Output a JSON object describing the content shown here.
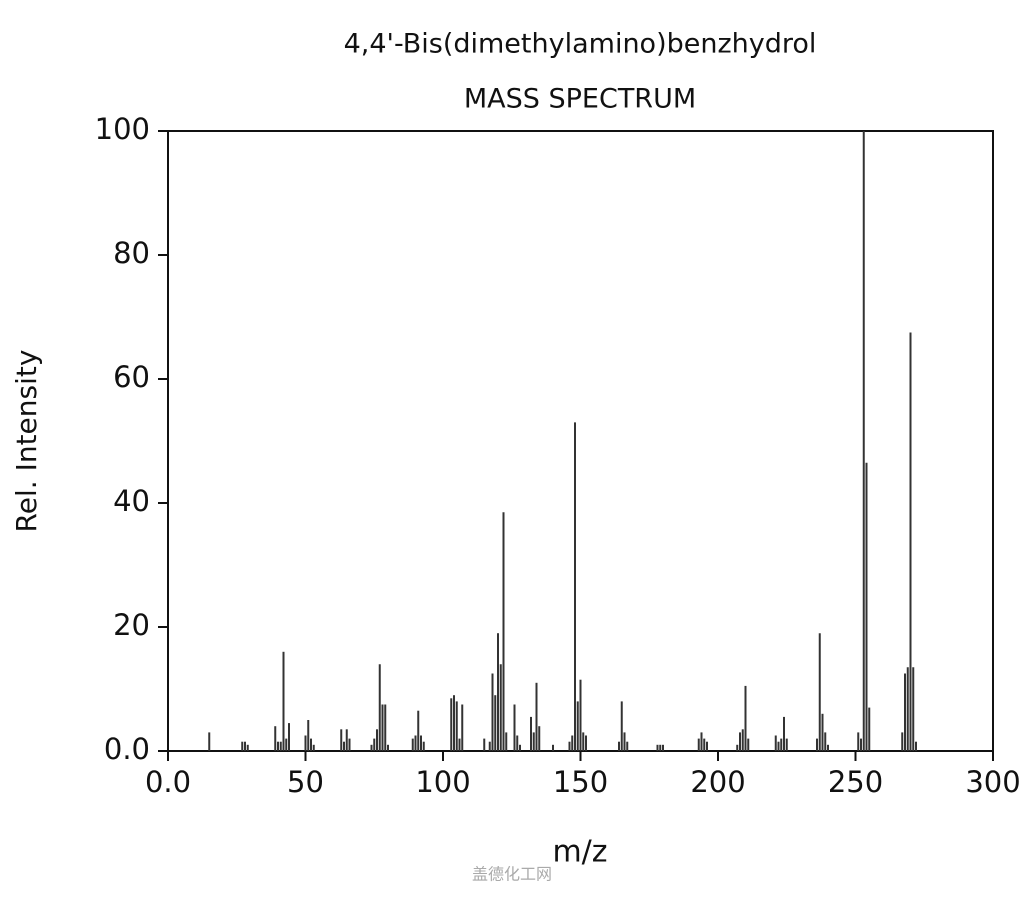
{
  "chart_data": {
    "type": "bar",
    "title": "4,4'-Bis(dimethylamino)benzhydrol",
    "subtitle": "MASS SPECTRUM",
    "x_label": "m/z",
    "y_label": "Rel. Intensity",
    "watermark": "盖德化工网",
    "color": "#333333",
    "x": [
      15,
      27,
      28,
      29,
      39,
      40,
      41,
      42,
      43,
      44,
      50,
      51,
      52,
      53,
      63,
      64,
      65,
      66,
      74,
      75,
      76,
      77,
      78,
      79,
      80,
      89,
      90,
      91,
      92,
      93,
      103,
      104,
      105,
      106,
      107,
      115,
      117,
      118,
      119,
      120,
      121,
      122,
      123,
      126,
      127,
      128,
      132,
      133,
      134,
      135,
      140,
      146,
      147,
      148,
      149,
      150,
      151,
      152,
      164,
      165,
      166,
      167,
      178,
      179,
      180,
      193,
      194,
      195,
      196,
      207,
      208,
      209,
      210,
      211,
      221,
      222,
      223,
      224,
      225,
      236,
      237,
      238,
      239,
      240,
      251,
      252,
      253,
      254,
      255,
      267,
      268,
      269,
      270,
      271,
      272
    ],
    "values": [
      3,
      1.5,
      1.5,
      1,
      4,
      1.5,
      1.5,
      16,
      2,
      4.5,
      2.5,
      5,
      2,
      1,
      3.5,
      1.5,
      3.5,
      2,
      1,
      2,
      3.5,
      14,
      7.5,
      7.5,
      1,
      2,
      2.5,
      6.5,
      2.5,
      1.5,
      8.5,
      9,
      8,
      2,
      7.5,
      2,
      1.5,
      12.5,
      9,
      19,
      14,
      38.5,
      3,
      7.5,
      2.5,
      1,
      5.5,
      3,
      11,
      4,
      1,
      1.5,
      2.5,
      53,
      8,
      11.5,
      3,
      2.5,
      1.5,
      8,
      3,
      1.5,
      1,
      1,
      1,
      2,
      3,
      2,
      1.5,
      1,
      3,
      3.5,
      10.5,
      2,
      2.5,
      1.5,
      2,
      5.5,
      2,
      2,
      19,
      6,
      3,
      1,
      3,
      2,
      100,
      46.5,
      7,
      3,
      12.5,
      13.5,
      67.5,
      13.5,
      1.5
    ],
    "xlim": [
      0,
      300
    ],
    "xticks": [
      {
        "value": 0,
        "label": "0.0"
      },
      50,
      100,
      150,
      200,
      250,
      300
    ],
    "ylim": [
      0,
      100
    ],
    "yticks": [
      {
        "value": 0,
        "label": "0.0"
      },
      20,
      40,
      60,
      80,
      100
    ]
  }
}
